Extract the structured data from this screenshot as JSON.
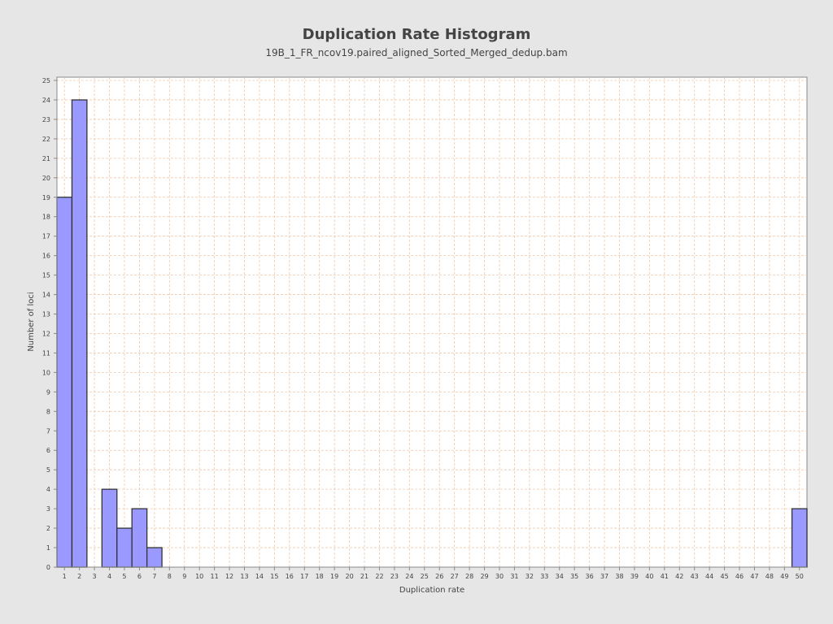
{
  "chart_data": {
    "type": "bar",
    "title": "Duplication Rate Histogram",
    "subtitle": "19B_1_FR_ncov19.paired_aligned_Sorted_Merged_dedup.bam",
    "xlabel": "Duplication rate",
    "ylabel": "Number of loci",
    "x_categories": [
      "1",
      "2",
      "3",
      "4",
      "5",
      "6",
      "7",
      "8",
      "9",
      "10",
      "11",
      "12",
      "13",
      "14",
      "15",
      "16",
      "17",
      "18",
      "19",
      "20",
      "21",
      "22",
      "23",
      "24",
      "25",
      "26",
      "27",
      "28",
      "29",
      "30",
      "31",
      "32",
      "33",
      "34",
      "35",
      "36",
      "37",
      "38",
      "39",
      "40",
      "41",
      "42",
      "43",
      "44",
      "45",
      "46",
      "47",
      "48",
      "49",
      "50"
    ],
    "values": [
      19,
      24,
      0,
      4,
      2,
      3,
      1,
      0,
      0,
      0,
      0,
      0,
      0,
      0,
      0,
      0,
      0,
      0,
      0,
      0,
      0,
      0,
      0,
      0,
      0,
      0,
      0,
      0,
      0,
      0,
      0,
      0,
      0,
      0,
      0,
      0,
      0,
      0,
      0,
      0,
      0,
      0,
      0,
      0,
      0,
      0,
      0,
      0,
      0,
      3
    ],
    "ylim": [
      0,
      25
    ],
    "y_ticks": [
      "0",
      "1",
      "2",
      "3",
      "4",
      "5",
      "6",
      "7",
      "8",
      "9",
      "10",
      "11",
      "12",
      "13",
      "14",
      "15",
      "16",
      "17",
      "18",
      "19",
      "20",
      "21",
      "22",
      "23",
      "24",
      "25"
    ],
    "grid": true,
    "colors": {
      "background": "#e6e6e6",
      "plot_background": "#ffffff",
      "bar_fill": "#9999ff",
      "bar_stroke": "#333333",
      "grid": "#f0c8a8",
      "axis": "#888888",
      "text": "#444444"
    }
  }
}
